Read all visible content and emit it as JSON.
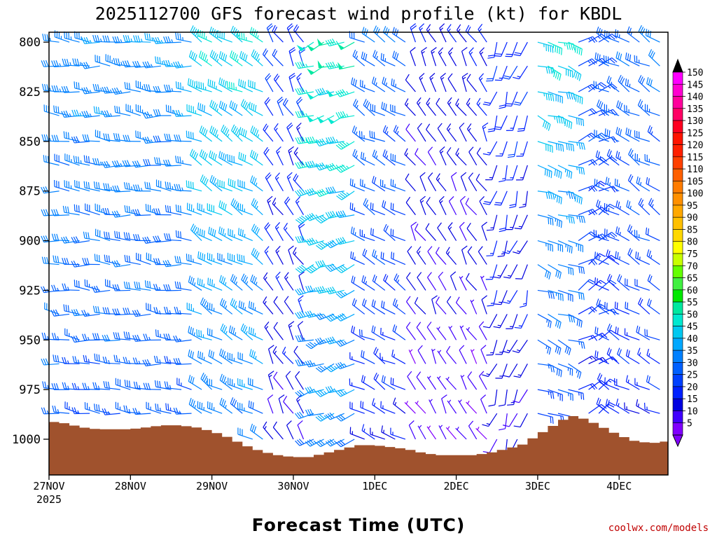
{
  "chart_data": {
    "type": "wind-barb-profile",
    "title": "2025112700 GFS forecast wind profile (kt) for KBDL",
    "xlabel": "Forecast Time (UTC)",
    "credit": "coolwx.com/models",
    "x_ticks": [
      {
        "day": 0,
        "label": "27NOV",
        "sub": "2025"
      },
      {
        "day": 1,
        "label": "28NOV"
      },
      {
        "day": 2,
        "label": "29NOV"
      },
      {
        "day": 3,
        "label": "30NOV"
      },
      {
        "day": 4,
        "label": "1DEC"
      },
      {
        "day": 5,
        "label": "2DEC"
      },
      {
        "day": 6,
        "label": "3DEC"
      },
      {
        "day": 7,
        "label": "4DEC"
      }
    ],
    "x_range_days": [
      0,
      7.6
    ],
    "y_range_hpa": [
      795,
      1018
    ],
    "y_ticks": [
      800,
      825,
      850,
      875,
      900,
      925,
      950,
      975,
      1000
    ],
    "levels_hpa": [
      800,
      812,
      825,
      837,
      850,
      862,
      875,
      887,
      900,
      912,
      925,
      937,
      950,
      962,
      975,
      987,
      1000
    ],
    "time_step_hours": 3,
    "colorbar": {
      "labels": [
        "150",
        "145",
        "140",
        "135",
        "130",
        "125",
        "120",
        "115",
        "110",
        "105",
        "100",
        "95",
        "90",
        "85",
        "80",
        "75",
        "70",
        "65",
        "60",
        "55",
        "50",
        "45",
        "40",
        "35",
        "30",
        "25",
        "20",
        "15",
        "10",
        "5"
      ],
      "colors": [
        "#ff00ff",
        "#ff00d0",
        "#ff009c",
        "#ff0064",
        "#ff0020",
        "#ff1400",
        "#ff2000",
        "#ff4000",
        "#ff6000",
        "#ff7c00",
        "#ff9000",
        "#ffa800",
        "#ffc000",
        "#ffd800",
        "#ffff00",
        "#c8ff00",
        "#64ff00",
        "#40f040",
        "#00e800",
        "#00e8a0",
        "#00e8d0",
        "#00c8f0",
        "#00a8ff",
        "#0080ff",
        "#0060ff",
        "#0040ff",
        "#0020ff",
        "#0000e0",
        "#4000ff",
        "#8000ff"
      ]
    },
    "surface_pressure_hpa": [
      {
        "day": 0.0,
        "p": 991
      },
      {
        "day": 0.2,
        "p": 992
      },
      {
        "day": 0.4,
        "p": 994
      },
      {
        "day": 0.6,
        "p": 995
      },
      {
        "day": 0.8,
        "p": 995
      },
      {
        "day": 1.0,
        "p": 995
      },
      {
        "day": 1.2,
        "p": 994
      },
      {
        "day": 1.4,
        "p": 993
      },
      {
        "day": 1.6,
        "p": 993
      },
      {
        "day": 1.8,
        "p": 994
      },
      {
        "day": 2.0,
        "p": 996
      },
      {
        "day": 2.2,
        "p": 999
      },
      {
        "day": 2.4,
        "p": 1003
      },
      {
        "day": 2.6,
        "p": 1006
      },
      {
        "day": 2.8,
        "p": 1008
      },
      {
        "day": 3.0,
        "p": 1009
      },
      {
        "day": 3.2,
        "p": 1009
      },
      {
        "day": 3.4,
        "p": 1007
      },
      {
        "day": 3.6,
        "p": 1005
      },
      {
        "day": 3.8,
        "p": 1003
      },
      {
        "day": 4.0,
        "p": 1003
      },
      {
        "day": 4.2,
        "p": 1004
      },
      {
        "day": 4.4,
        "p": 1005
      },
      {
        "day": 4.6,
        "p": 1007
      },
      {
        "day": 4.8,
        "p": 1008
      },
      {
        "day": 5.0,
        "p": 1008
      },
      {
        "day": 5.2,
        "p": 1008
      },
      {
        "day": 5.4,
        "p": 1007
      },
      {
        "day": 5.6,
        "p": 1005
      },
      {
        "day": 5.8,
        "p": 1003
      },
      {
        "day": 6.0,
        "p": 998
      },
      {
        "day": 6.2,
        "p": 993
      },
      {
        "day": 6.4,
        "p": 988
      },
      {
        "day": 6.6,
        "p": 990
      },
      {
        "day": 6.8,
        "p": 994
      },
      {
        "day": 7.0,
        "p": 998
      },
      {
        "day": 7.2,
        "p": 1001
      },
      {
        "day": 7.4,
        "p": 1002
      },
      {
        "day": 7.6,
        "p": 1001
      }
    ],
    "wind_regimes": [
      {
        "from_day": 0.0,
        "to_day": 1.8,
        "dir_deg": 275,
        "speed_low_kt": 25,
        "speed_high_kt": 35
      },
      {
        "from_day": 1.8,
        "to_day": 2.7,
        "dir_deg": 300,
        "speed_low_kt": 30,
        "speed_high_kt": 45
      },
      {
        "from_day": 2.7,
        "to_day": 3.2,
        "dir_deg": 330,
        "speed_low_kt": 10,
        "speed_high_kt": 20
      },
      {
        "from_day": 3.2,
        "to_day": 3.8,
        "dir_deg": 250,
        "speed_low_kt": 30,
        "speed_high_kt": 50
      },
      {
        "from_day": 3.8,
        "to_day": 4.4,
        "dir_deg": 300,
        "speed_low_kt": 15,
        "speed_high_kt": 30
      },
      {
        "from_day": 4.4,
        "to_day": 5.4,
        "dir_deg": 330,
        "speed_low_kt": 5,
        "speed_high_kt": 15
      },
      {
        "from_day": 5.4,
        "to_day": 5.9,
        "dir_deg": 200,
        "speed_low_kt": 10,
        "speed_high_kt": 20
      },
      {
        "from_day": 5.9,
        "to_day": 6.4,
        "dir_deg": 110,
        "speed_low_kt": 20,
        "speed_high_kt": 45
      },
      {
        "from_day": 6.4,
        "to_day": 6.8,
        "dir_deg": 60,
        "speed_low_kt": 15,
        "speed_high_kt": 25
      },
      {
        "from_day": 6.8,
        "to_day": 7.6,
        "dir_deg": 300,
        "speed_low_kt": 15,
        "speed_high_kt": 30
      }
    ]
  }
}
